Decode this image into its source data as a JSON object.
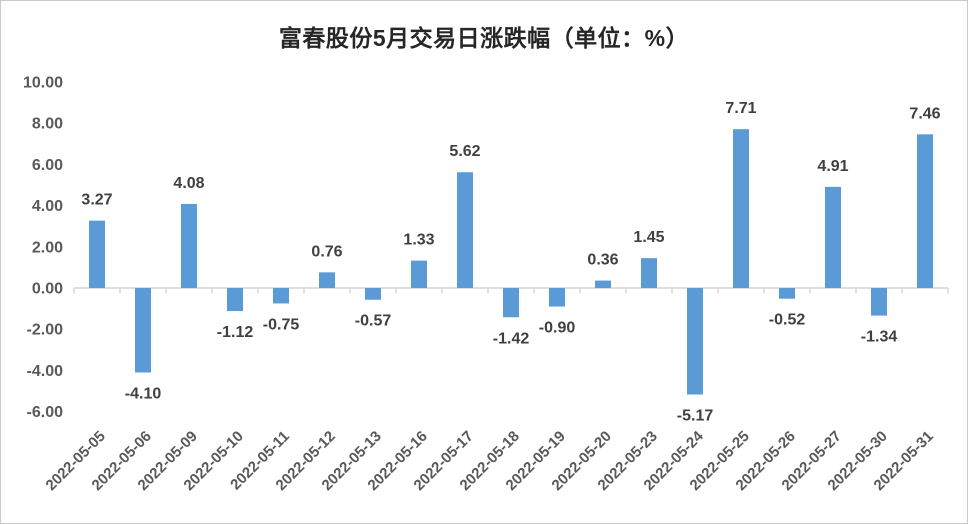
{
  "chart_data": {
    "type": "bar",
    "title": "富春股份5月交易日涨跌幅（单位：%）",
    "unit": "%",
    "categories": [
      "2022-05-05",
      "2022-05-06",
      "2022-05-09",
      "2022-05-10",
      "2022-05-11",
      "2022-05-12",
      "2022-05-13",
      "2022-05-16",
      "2022-05-17",
      "2022-05-18",
      "2022-05-19",
      "2022-05-20",
      "2022-05-23",
      "2022-05-24",
      "2022-05-25",
      "2022-05-26",
      "2022-05-27",
      "2022-05-30",
      "2022-05-31"
    ],
    "values": [
      3.27,
      -4.1,
      4.08,
      -1.12,
      -0.75,
      0.76,
      -0.57,
      1.33,
      5.62,
      -1.42,
      -0.9,
      0.36,
      1.45,
      -5.17,
      7.71,
      -0.52,
      4.91,
      -1.34,
      7.46
    ],
    "xlabel": "",
    "ylabel": "",
    "ylim": [
      -6,
      10
    ],
    "ytick_step": 2,
    "ytick_labels": [
      "10.00",
      "8.00",
      "6.00",
      "4.00",
      "2.00",
      "0.00",
      "-2.00",
      "-4.00",
      "-6.00"
    ],
    "grid": false,
    "legend": "none",
    "data_labels": "outside-end",
    "colors": {
      "bar": "#5b9bd5",
      "axis": "#d9d9d9",
      "tick_label": "#595959",
      "data_label": "#404040",
      "title": "#262626",
      "background": "#ffffff"
    }
  }
}
